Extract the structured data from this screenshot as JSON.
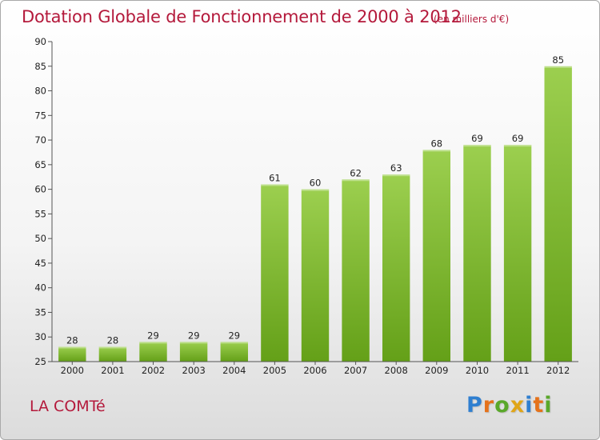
{
  "header": {
    "title": "Dotation Globale de Fonctionnement de 2000 à 2012",
    "subtitle": "(en milliers d'€)"
  },
  "commune": "LA COMTé",
  "brand": {
    "letters": [
      {
        "ch": "P",
        "color": "#2f7fd0"
      },
      {
        "ch": "r",
        "color": "#e5721b"
      },
      {
        "ch": "o",
        "color": "#5aa82a"
      },
      {
        "ch": "x",
        "color": "#e0a517"
      },
      {
        "ch": "i",
        "color": "#2f7fd0"
      },
      {
        "ch": "t",
        "color": "#e5721b"
      },
      {
        "ch": "i",
        "color": "#5aa82a"
      }
    ]
  },
  "chart_data": {
    "type": "bar",
    "categories": [
      "2000",
      "2001",
      "2002",
      "2003",
      "2004",
      "2005",
      "2006",
      "2007",
      "2008",
      "2009",
      "2010",
      "2011",
      "2012"
    ],
    "values": [
      28,
      28,
      29,
      29,
      29,
      61,
      60,
      62,
      63,
      68,
      69,
      69,
      85
    ],
    "title": "Dotation Globale de Fonctionnement de 2000 à 2012",
    "subtitle": "(en milliers d'€)",
    "xlabel": "",
    "ylabel": "",
    "ylim": [
      25,
      90
    ],
    "yticks": [
      25,
      30,
      35,
      40,
      45,
      50,
      55,
      60,
      65,
      70,
      75,
      80,
      85,
      90
    ],
    "grid": false,
    "legend": "none",
    "colors": {
      "bar_top": "#9ccf4f",
      "bar_bottom": "#64a018",
      "axis": "#555555"
    }
  }
}
